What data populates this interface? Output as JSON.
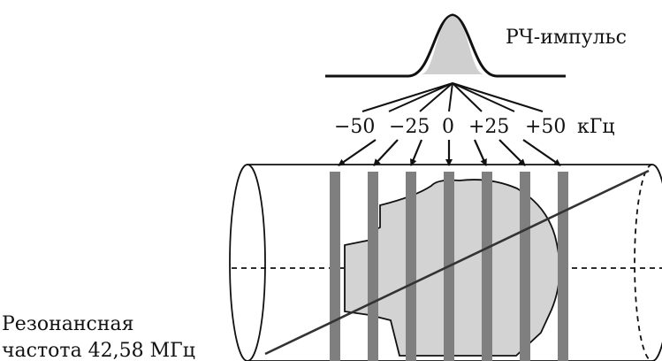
{
  "pulse": {
    "label": "РЧ-импульс"
  },
  "frequency_axis": {
    "unit": "кГц",
    "offsets": [
      "−50",
      "−25",
      "0",
      "+25",
      "+50"
    ]
  },
  "resonance": {
    "line1": "Резонансная",
    "line2": "частота 42,58 МГц"
  },
  "colors": {
    "stroke": "#111111",
    "head_fill": "#d3d3d3",
    "slice_fill": "#7f7f7f",
    "pulse_fill": "#cfcfcf"
  }
}
